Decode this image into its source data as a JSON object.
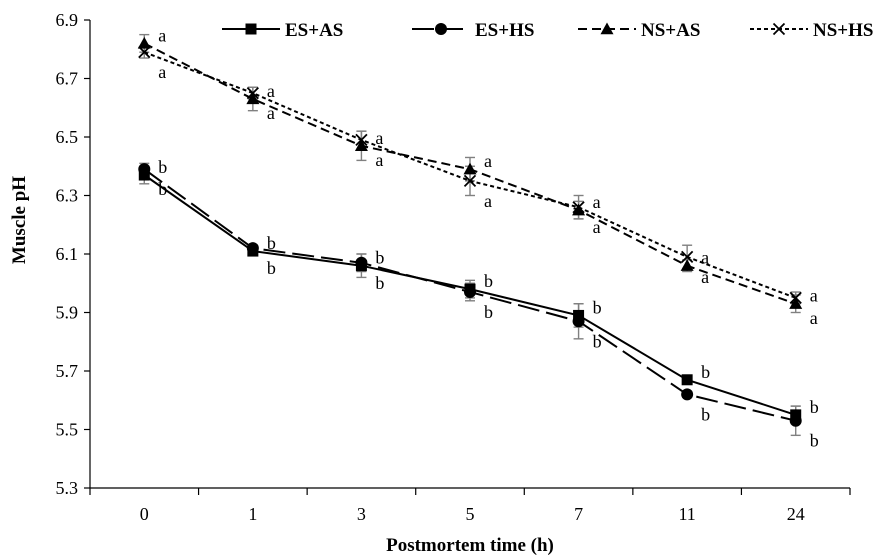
{
  "chart_data": {
    "type": "line",
    "xlabel": "Postmortem time (h)",
    "ylabel": "Muscle pH",
    "ylim": [
      5.3,
      6.9
    ],
    "yticks": [
      "5.3",
      "5.5",
      "5.7",
      "5.9",
      "6.1",
      "6.3",
      "6.5",
      "6.7",
      "6.9"
    ],
    "categories": [
      "0",
      "1",
      "3",
      "5",
      "7",
      "11",
      "24"
    ],
    "grid": false,
    "legend_position": "top",
    "series": [
      {
        "name": "ES+AS",
        "marker": "square",
        "dash": "solid",
        "values": [
          6.37,
          6.11,
          6.06,
          5.98,
          5.89,
          5.67,
          5.55
        ],
        "errors": [
          0.03,
          0.01,
          0.04,
          0.03,
          0.04,
          0.01,
          0.03
        ],
        "labels": [
          "b",
          "b",
          "b",
          "b",
          "b",
          "b",
          "b"
        ]
      },
      {
        "name": "ES+HS",
        "marker": "circle",
        "dash": "long-dash",
        "values": [
          6.39,
          6.12,
          6.07,
          5.97,
          5.87,
          5.62,
          5.53
        ],
        "errors": [
          0.02,
          0.01,
          0.03,
          0.03,
          0.06,
          0.01,
          0.05
        ],
        "labels": [
          "b",
          "b",
          "b",
          "b",
          "b",
          "b",
          "b"
        ]
      },
      {
        "name": "NS+AS",
        "marker": "triangle",
        "dash": "dash",
        "values": [
          6.82,
          6.63,
          6.47,
          6.39,
          6.25,
          6.06,
          5.93
        ],
        "errors": [
          0.03,
          0.04,
          0.05,
          0.04,
          0.03,
          0.02,
          0.03
        ],
        "labels": [
          "a",
          "a",
          "a",
          "a",
          "a",
          "a",
          "a"
        ]
      },
      {
        "name": "NS+HS",
        "marker": "cross",
        "dash": "dotted",
        "values": [
          6.79,
          6.65,
          6.49,
          6.35,
          6.26,
          6.09,
          5.95
        ],
        "errors": [
          0.02,
          0.02,
          0.03,
          0.05,
          0.04,
          0.04,
          0.02
        ],
        "labels": [
          "a",
          "a",
          "a",
          "a",
          "a",
          "a",
          "a"
        ]
      }
    ]
  }
}
